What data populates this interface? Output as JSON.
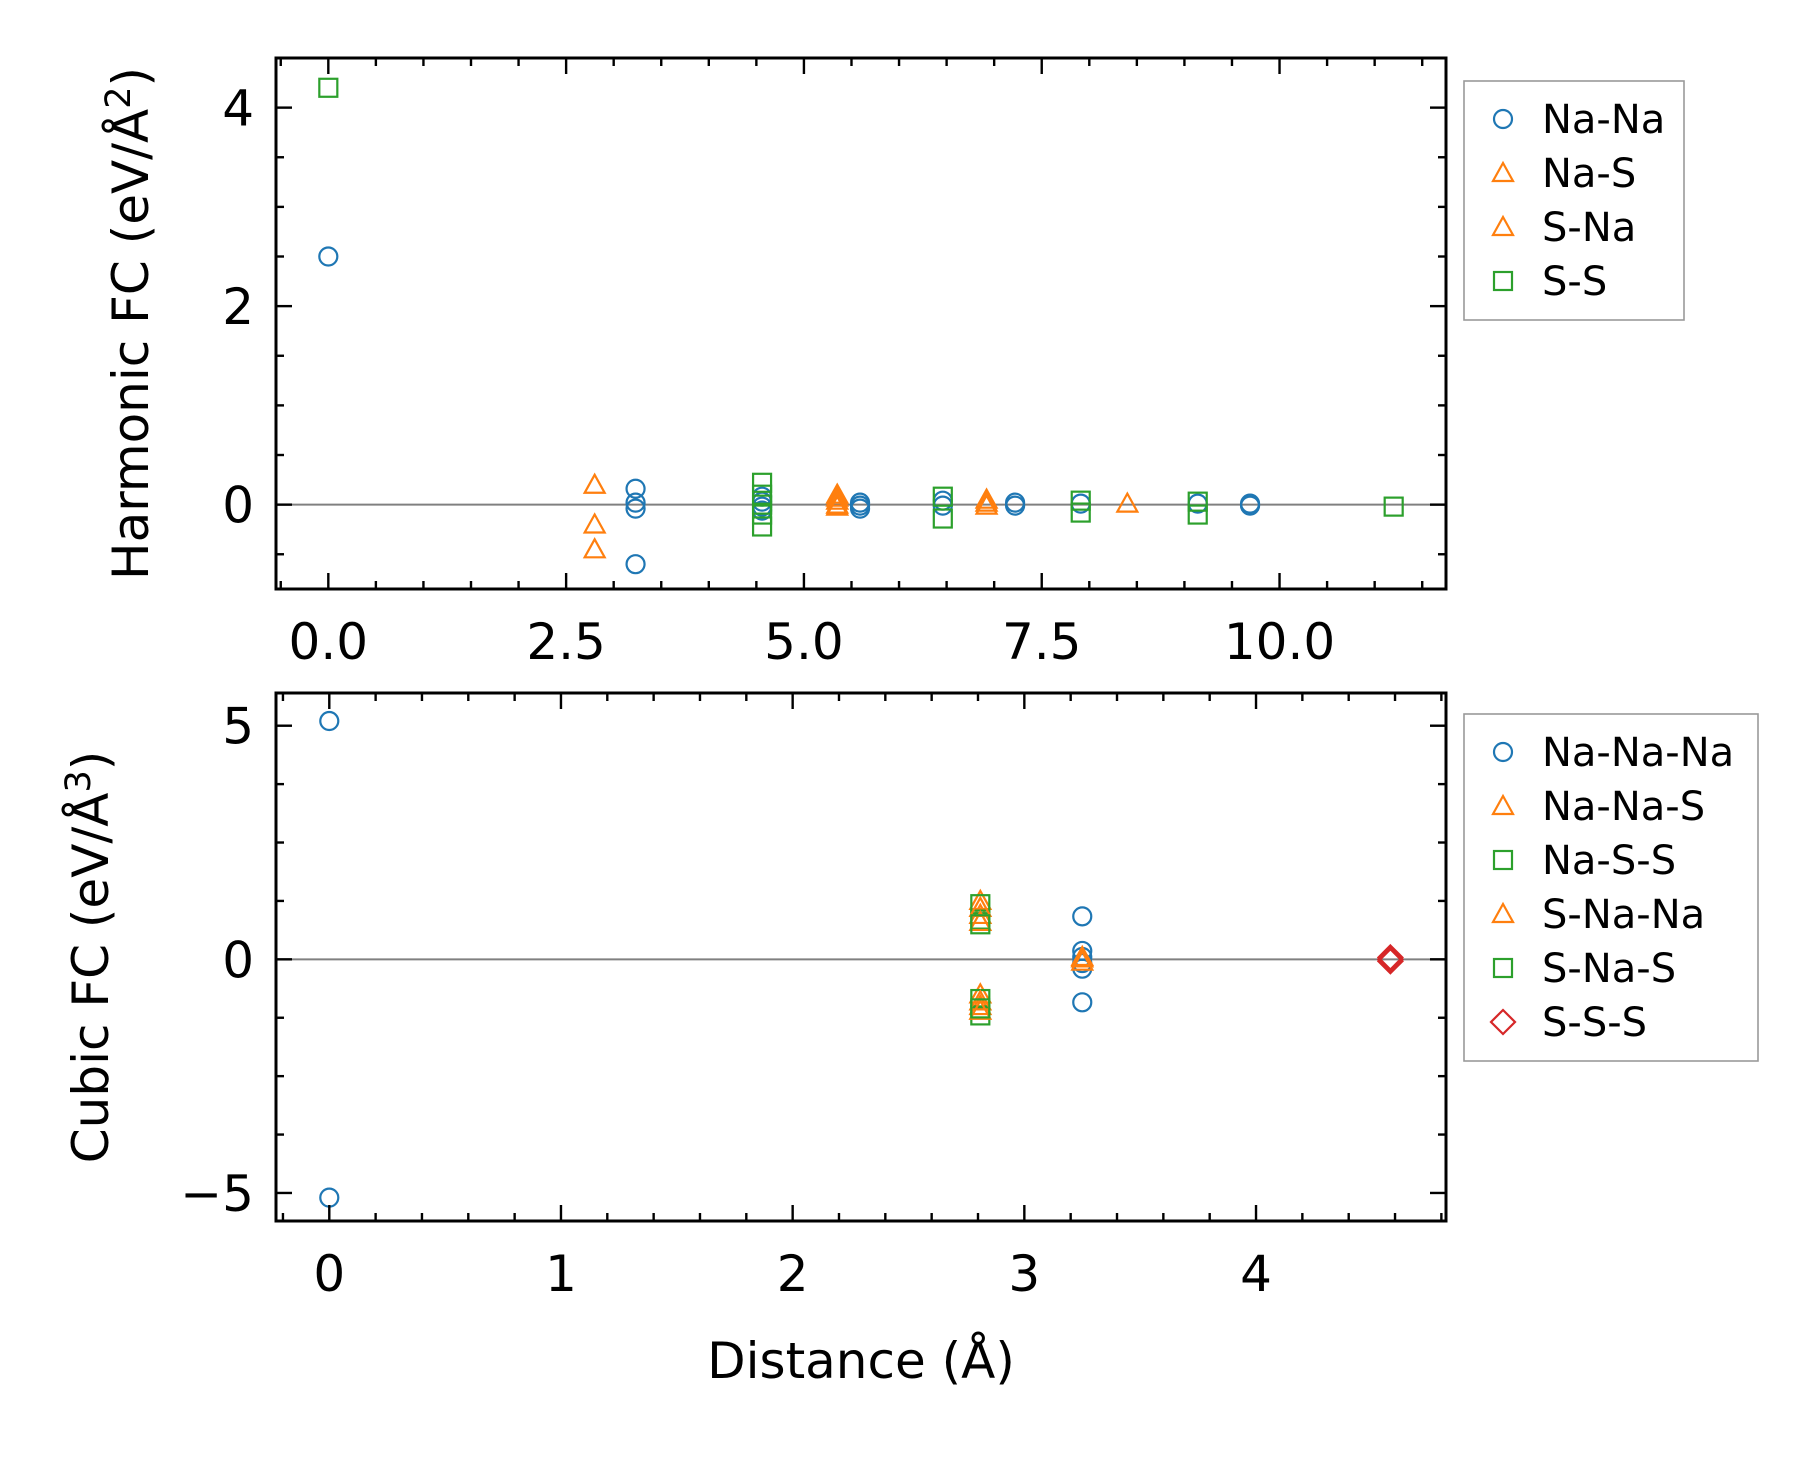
{
  "colors": {
    "blue": "#1f77b4",
    "orange": "#ff7f0e",
    "green": "#2ca02c",
    "red": "#d62728",
    "zero_line": "#808080"
  },
  "chart_data": [
    {
      "type": "scatter",
      "ylabel_main": "Harmonic FC (eV/Å",
      "ylabel_sup": "2",
      "ylabel_end": ")",
      "xlabel": "",
      "xlim": [
        -0.55,
        11.75
      ],
      "ylim": [
        -0.85,
        4.5
      ],
      "xticks": [
        0.0,
        2.5,
        5.0,
        7.5,
        10.0
      ],
      "xtick_labels": [
        "0.0",
        "2.5",
        "5.0",
        "7.5",
        "10.0"
      ],
      "yticks": [
        0,
        2,
        4
      ],
      "ytick_labels": [
        "0",
        "2",
        "4"
      ],
      "zero_line": true,
      "legend": {
        "placement": "outside-upper-right",
        "entries": [
          "Na-Na",
          "Na-S",
          "S-Na",
          "S-S"
        ]
      },
      "series": [
        {
          "name": "Na-Na",
          "marker": "circle",
          "color": "blue",
          "points": [
            [
              0,
              2.5
            ],
            [
              3.23,
              0.16
            ],
            [
              3.23,
              0.02
            ],
            [
              3.23,
              -0.04
            ],
            [
              3.23,
              -0.6
            ],
            [
              4.56,
              0.08
            ],
            [
              4.56,
              0.03
            ],
            [
              4.56,
              -0.02
            ],
            [
              4.56,
              -0.06
            ],
            [
              5.59,
              0.02
            ],
            [
              5.59,
              -0.01
            ],
            [
              5.59,
              -0.04
            ],
            [
              6.46,
              0.04
            ],
            [
              6.46,
              -0.01
            ],
            [
              7.22,
              0.02
            ],
            [
              7.22,
              -0.01
            ],
            [
              7.91,
              0.01
            ],
            [
              9.14,
              0.01
            ],
            [
              9.69,
              0.01
            ],
            [
              9.69,
              -0.01
            ]
          ]
        },
        {
          "name": "Na-S",
          "marker": "triangle",
          "color": "orange",
          "points": [
            [
              2.8,
              0.2
            ],
            [
              2.8,
              -0.2
            ],
            [
              2.8,
              -0.45
            ],
            [
              5.35,
              0.1
            ],
            [
              5.35,
              0.04
            ],
            [
              5.35,
              -0.02
            ],
            [
              6.92,
              0.05
            ],
            [
              6.92,
              -0.01
            ],
            [
              8.4,
              0.01
            ]
          ]
        },
        {
          "name": "S-Na",
          "marker": "triangle",
          "color": "orange",
          "points": [
            [
              5.35,
              0.07
            ],
            [
              5.35,
              0.0
            ],
            [
              6.92,
              0.02
            ]
          ]
        },
        {
          "name": "S-S",
          "marker": "square",
          "color": "green",
          "points": [
            [
              0,
              4.2
            ],
            [
              4.56,
              0.22
            ],
            [
              4.56,
              0.1
            ],
            [
              4.56,
              0.0
            ],
            [
              4.56,
              -0.1
            ],
            [
              4.56,
              -0.22
            ],
            [
              6.46,
              0.08
            ],
            [
              6.46,
              -0.14
            ],
            [
              7.91,
              0.04
            ],
            [
              7.91,
              -0.08
            ],
            [
              9.14,
              0.03
            ],
            [
              9.14,
              -0.1
            ],
            [
              11.2,
              -0.02
            ]
          ]
        }
      ]
    },
    {
      "type": "scatter",
      "ylabel_main": "Cubic FC (eV/Å",
      "ylabel_sup": "3",
      "ylabel_end": ")",
      "xlabel": "Distance (Å)",
      "xlim": [
        -0.23,
        4.82
      ],
      "ylim": [
        -5.6,
        5.7
      ],
      "xticks": [
        0,
        1,
        2,
        3,
        4
      ],
      "xtick_labels": [
        "0",
        "1",
        "2",
        "3",
        "4"
      ],
      "yticks": [
        -5,
        0,
        5
      ],
      "ytick_labels": [
        "−5",
        "0",
        "5"
      ],
      "zero_line": true,
      "legend": {
        "placement": "outside-upper-right",
        "entries": [
          "Na-Na-Na",
          "Na-Na-S",
          "Na-S-S",
          "S-Na-Na",
          "S-Na-S",
          "S-S-S"
        ]
      },
      "series": [
        {
          "name": "Na-Na-Na",
          "marker": "circle",
          "color": "blue",
          "points": [
            [
              0,
              5.1
            ],
            [
              0,
              -5.1
            ],
            [
              3.25,
              0.92
            ],
            [
              3.25,
              0.18
            ],
            [
              3.25,
              0.05
            ],
            [
              3.25,
              -0.08
            ],
            [
              3.25,
              -0.2
            ],
            [
              3.25,
              -0.92
            ]
          ]
        },
        {
          "name": "Na-Na-S",
          "marker": "triangle",
          "color": "orange",
          "points": [
            [
              2.81,
              1.25
            ],
            [
              2.81,
              0.95
            ],
            [
              2.81,
              -0.75
            ],
            [
              2.81,
              -1.0
            ],
            [
              3.25,
              0.02
            ],
            [
              3.25,
              -0.05
            ]
          ]
        },
        {
          "name": "Na-S-S",
          "marker": "square",
          "color": "green",
          "points": [
            [
              2.81,
              1.18
            ],
            [
              2.81,
              0.85
            ],
            [
              2.81,
              -0.85
            ],
            [
              2.81,
              -1.2
            ]
          ]
        },
        {
          "name": "S-Na-Na",
          "marker": "triangle",
          "color": "orange",
          "points": [
            [
              2.81,
              1.1
            ],
            [
              2.81,
              0.8
            ],
            [
              2.81,
              -0.9
            ],
            [
              2.81,
              -1.1
            ],
            [
              3.25,
              0.05
            ]
          ]
        },
        {
          "name": "S-Na-S",
          "marker": "square",
          "color": "green",
          "points": [
            [
              2.81,
              0.75
            ],
            [
              2.81,
              -1.05
            ]
          ]
        },
        {
          "name": "S-S-S",
          "marker": "diamond",
          "color": "red",
          "points": [
            [
              4.58,
              0.04
            ],
            [
              4.58,
              0.0
            ],
            [
              4.58,
              -0.04
            ]
          ]
        }
      ]
    }
  ]
}
